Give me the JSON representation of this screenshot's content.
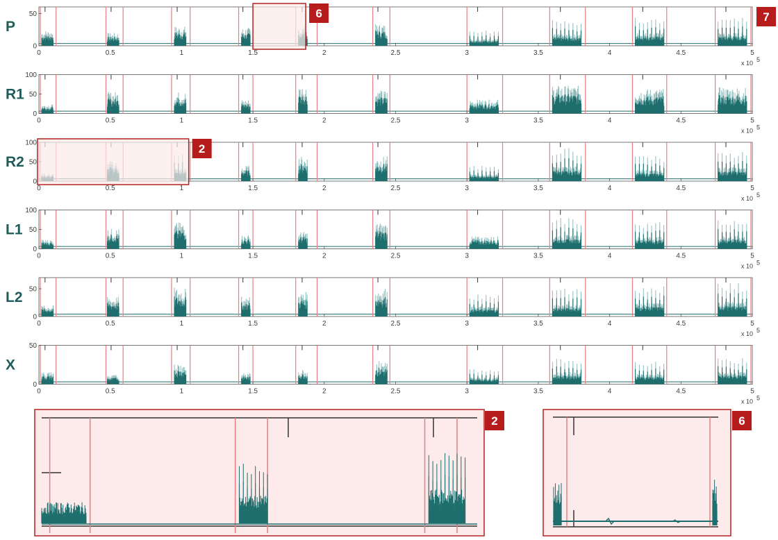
{
  "colors": {
    "signal": "#1e6e6e",
    "signal_light": "#8fbcbc",
    "marker": "#e57f84",
    "highlight_fill": "#fcebea",
    "highlight_border": "#b22222",
    "badge": "#b71c1c",
    "channel_label": "#1f5c5c",
    "axis": "#555555"
  },
  "chart_data": [
    {
      "type": "area",
      "channel": "P",
      "ylim": [
        0,
        60
      ],
      "yticks": [
        "0",
        "50"
      ],
      "xlim": [
        0,
        5
      ],
      "xticks": [
        "0",
        "0.5",
        "1",
        "1.5",
        "2",
        "2.5",
        "3",
        "3.5",
        "4",
        "4.5",
        "5"
      ],
      "xexp": "x 10",
      "bursts": [
        {
          "x": [
            0.02,
            0.1
          ],
          "peak": 30,
          "pattern": "dense"
        },
        {
          "x": [
            0.48,
            0.56
          ],
          "peak": 25,
          "pattern": "dense"
        },
        {
          "x": [
            0.95,
            1.03
          ],
          "peak": 38,
          "pattern": "dense"
        },
        {
          "x": [
            1.42,
            1.48
          ],
          "peak": 35,
          "pattern": "dense"
        },
        {
          "x": [
            1.82,
            1.88
          ],
          "peak": 38,
          "pattern": "dense"
        },
        {
          "x": [
            2.36,
            2.44
          ],
          "peak": 42,
          "pattern": "dense"
        },
        {
          "x": [
            3.02,
            3.22
          ],
          "peak": 25,
          "pattern": "comb"
        },
        {
          "x": [
            3.6,
            3.8
          ],
          "peak": 40,
          "pattern": "comb"
        },
        {
          "x": [
            4.18,
            4.38
          ],
          "peak": 45,
          "pattern": "comb"
        },
        {
          "x": [
            4.76,
            4.96
          ],
          "peak": 45,
          "pattern": "comb"
        }
      ],
      "markers": [
        [
          0.01,
          0.12
        ],
        [
          0.47,
          0.59
        ],
        [
          0.93,
          1.06
        ],
        [
          1.4,
          1.5
        ],
        [
          1.8,
          1.95
        ],
        [
          2.34,
          2.46
        ],
        [
          3.0,
          3.25
        ],
        [
          3.58,
          3.83
        ],
        [
          4.16,
          4.4
        ],
        [
          4.74,
          4.99
        ]
      ]
    },
    {
      "type": "area",
      "channel": "R1",
      "ylim": [
        0,
        100
      ],
      "yticks": [
        "0",
        "50",
        "100"
      ],
      "xlim": [
        0,
        5
      ],
      "xticks": [
        "0",
        "0.5",
        "1",
        "1.5",
        "2",
        "2.5",
        "3",
        "3.5",
        "4",
        "4.5",
        "5"
      ],
      "xexp": "x 10",
      "bursts": [
        {
          "x": [
            0.02,
            0.1
          ],
          "peak": 30,
          "pattern": "dense"
        },
        {
          "x": [
            0.48,
            0.56
          ],
          "peak": 70,
          "pattern": "dense"
        },
        {
          "x": [
            0.95,
            1.03
          ],
          "peak": 70,
          "pattern": "dense"
        },
        {
          "x": [
            1.42,
            1.48
          ],
          "peak": 45,
          "pattern": "dense"
        },
        {
          "x": [
            1.82,
            1.88
          ],
          "peak": 90,
          "pattern": "dense"
        },
        {
          "x": [
            2.36,
            2.44
          ],
          "peak": 75,
          "pattern": "dense"
        },
        {
          "x": [
            3.02,
            3.22
          ],
          "peak": 45,
          "pattern": "dense"
        },
        {
          "x": [
            3.6,
            3.8
          ],
          "peak": 90,
          "pattern": "dense"
        },
        {
          "x": [
            4.18,
            4.38
          ],
          "peak": 80,
          "pattern": "dense"
        },
        {
          "x": [
            4.76,
            4.96
          ],
          "peak": 85,
          "pattern": "dense"
        }
      ],
      "markers": [
        [
          0.01,
          0.12
        ],
        [
          0.47,
          0.59
        ],
        [
          0.93,
          1.06
        ],
        [
          1.4,
          1.5
        ],
        [
          1.8,
          1.95
        ],
        [
          2.34,
          2.46
        ],
        [
          3.0,
          3.25
        ],
        [
          3.58,
          3.83
        ],
        [
          4.16,
          4.4
        ],
        [
          4.74,
          4.99
        ]
      ]
    },
    {
      "type": "area",
      "channel": "R2",
      "ylim": [
        0,
        100
      ],
      "yticks": [
        "0",
        "50",
        "100"
      ],
      "xlim": [
        0,
        5
      ],
      "xticks": [
        "0",
        "0.5",
        "1",
        "1.5",
        "2",
        "2.5",
        "3",
        "3.5",
        "4",
        "4.5",
        "5"
      ],
      "xexp": "x 10",
      "bursts": [
        {
          "x": [
            0.02,
            0.1
          ],
          "peak": 25,
          "pattern": "dense"
        },
        {
          "x": [
            0.48,
            0.56
          ],
          "peak": 65,
          "pattern": "dense"
        },
        {
          "x": [
            0.95,
            1.03
          ],
          "peak": 75,
          "pattern": "comb"
        },
        {
          "x": [
            1.42,
            1.48
          ],
          "peak": 50,
          "pattern": "dense"
        },
        {
          "x": [
            1.82,
            1.88
          ],
          "peak": 80,
          "pattern": "dense"
        },
        {
          "x": [
            2.36,
            2.44
          ],
          "peak": 80,
          "pattern": "dense"
        },
        {
          "x": [
            3.02,
            3.22
          ],
          "peak": 40,
          "pattern": "comb"
        },
        {
          "x": [
            3.6,
            3.8
          ],
          "peak": 85,
          "pattern": "comb"
        },
        {
          "x": [
            4.18,
            4.38
          ],
          "peak": 65,
          "pattern": "comb"
        },
        {
          "x": [
            4.76,
            4.96
          ],
          "peak": 80,
          "pattern": "comb"
        }
      ],
      "markers": [
        [
          0.01,
          0.12
        ],
        [
          0.47,
          0.59
        ],
        [
          0.93,
          1.06
        ],
        [
          1.4,
          1.5
        ],
        [
          1.8,
          1.95
        ],
        [
          2.34,
          2.46
        ],
        [
          3.0,
          3.25
        ],
        [
          3.58,
          3.83
        ],
        [
          4.16,
          4.4
        ],
        [
          4.74,
          4.99
        ]
      ]
    },
    {
      "type": "area",
      "channel": "L1",
      "ylim": [
        0,
        100
      ],
      "yticks": [
        "0",
        "50",
        "100"
      ],
      "xlim": [
        0,
        5
      ],
      "xticks": [
        "0",
        "0.5",
        "1",
        "1.5",
        "2",
        "2.5",
        "3",
        "3.5",
        "4",
        "4.5",
        "5"
      ],
      "xexp": "x 10",
      "bursts": [
        {
          "x": [
            0.02,
            0.1
          ],
          "peak": 30,
          "pattern": "dense"
        },
        {
          "x": [
            0.48,
            0.56
          ],
          "peak": 65,
          "pattern": "dense"
        },
        {
          "x": [
            0.95,
            1.03
          ],
          "peak": 85,
          "pattern": "dense"
        },
        {
          "x": [
            1.42,
            1.48
          ],
          "peak": 45,
          "pattern": "dense"
        },
        {
          "x": [
            1.82,
            1.88
          ],
          "peak": 55,
          "pattern": "dense"
        },
        {
          "x": [
            2.36,
            2.44
          ],
          "peak": 85,
          "pattern": "dense"
        },
        {
          "x": [
            3.02,
            3.22
          ],
          "peak": 40,
          "pattern": "dense"
        },
        {
          "x": [
            3.6,
            3.8
          ],
          "peak": 80,
          "pattern": "comb"
        },
        {
          "x": [
            4.18,
            4.38
          ],
          "peak": 70,
          "pattern": "comb"
        },
        {
          "x": [
            4.76,
            4.96
          ],
          "peak": 75,
          "pattern": "comb"
        }
      ],
      "markers": [
        [
          0.01,
          0.12
        ],
        [
          0.47,
          0.59
        ],
        [
          0.93,
          1.06
        ],
        [
          1.4,
          1.5
        ],
        [
          1.8,
          1.95
        ],
        [
          2.34,
          2.46
        ],
        [
          3.0,
          3.25
        ],
        [
          3.58,
          3.83
        ],
        [
          4.16,
          4.4
        ],
        [
          4.74,
          4.99
        ]
      ]
    },
    {
      "type": "area",
      "channel": "L2",
      "ylim": [
        0,
        70
      ],
      "yticks": [
        "0",
        "50"
      ],
      "xlim": [
        0,
        5
      ],
      "xticks": [
        "0",
        "0.5",
        "1",
        "1.5",
        "2",
        "2.5",
        "3",
        "3.5",
        "4",
        "4.5",
        "5"
      ],
      "xexp": "x 10",
      "bursts": [
        {
          "x": [
            0.02,
            0.1
          ],
          "peak": 25,
          "pattern": "dense"
        },
        {
          "x": [
            0.48,
            0.56
          ],
          "peak": 45,
          "pattern": "dense"
        },
        {
          "x": [
            0.95,
            1.03
          ],
          "peak": 65,
          "pattern": "dense"
        },
        {
          "x": [
            1.42,
            1.48
          ],
          "peak": 45,
          "pattern": "dense"
        },
        {
          "x": [
            1.82,
            1.88
          ],
          "peak": 55,
          "pattern": "dense"
        },
        {
          "x": [
            2.36,
            2.44
          ],
          "peak": 65,
          "pattern": "dense"
        },
        {
          "x": [
            3.02,
            3.22
          ],
          "peak": 40,
          "pattern": "comb"
        },
        {
          "x": [
            3.6,
            3.8
          ],
          "peak": 50,
          "pattern": "comb"
        },
        {
          "x": [
            4.18,
            4.38
          ],
          "peak": 55,
          "pattern": "comb"
        },
        {
          "x": [
            4.76,
            4.96
          ],
          "peak": 60,
          "pattern": "comb"
        }
      ],
      "markers": [
        [
          0.01,
          0.12
        ],
        [
          0.47,
          0.59
        ],
        [
          0.93,
          1.06
        ],
        [
          1.4,
          1.5
        ],
        [
          1.8,
          1.95
        ],
        [
          2.34,
          2.46
        ],
        [
          3.0,
          3.25
        ],
        [
          3.58,
          3.83
        ],
        [
          4.16,
          4.4
        ],
        [
          4.74,
          4.99
        ]
      ]
    },
    {
      "type": "area",
      "channel": "X",
      "ylim": [
        0,
        50
      ],
      "yticks": [
        "0",
        "50"
      ],
      "xlim": [
        0,
        5
      ],
      "xticks": [
        "0",
        "0.5",
        "1",
        "1.5",
        "2",
        "2.5",
        "3",
        "3.5",
        "4",
        "4.5",
        "5"
      ],
      "xexp": "x 10",
      "bursts": [
        {
          "x": [
            0.02,
            0.1
          ],
          "peak": 20,
          "pattern": "dense"
        },
        {
          "x": [
            0.48,
            0.56
          ],
          "peak": 15,
          "pattern": "dense"
        },
        {
          "x": [
            0.95,
            1.03
          ],
          "peak": 35,
          "pattern": "dense"
        },
        {
          "x": [
            1.42,
            1.48
          ],
          "peak": 18,
          "pattern": "dense"
        },
        {
          "x": [
            1.82,
            1.88
          ],
          "peak": 25,
          "pattern": "dense"
        },
        {
          "x": [
            2.36,
            2.44
          ],
          "peak": 38,
          "pattern": "dense"
        },
        {
          "x": [
            3.02,
            3.22
          ],
          "peak": 20,
          "pattern": "comb"
        },
        {
          "x": [
            3.6,
            3.8
          ],
          "peak": 35,
          "pattern": "comb"
        },
        {
          "x": [
            4.18,
            4.38
          ],
          "peak": 30,
          "pattern": "comb"
        },
        {
          "x": [
            4.76,
            4.96
          ],
          "peak": 35,
          "pattern": "comb"
        }
      ],
      "markers": [
        [
          0.01,
          0.12
        ],
        [
          0.47,
          0.59
        ],
        [
          0.93,
          1.06
        ],
        [
          1.4,
          1.5
        ],
        [
          1.8,
          1.95
        ],
        [
          2.34,
          2.46
        ],
        [
          3.0,
          3.25
        ],
        [
          3.58,
          3.83
        ],
        [
          4.16,
          4.4
        ],
        [
          4.74,
          4.99
        ]
      ]
    }
  ],
  "x_exponent": "5",
  "highlights": [
    {
      "label": "6",
      "channel": "P",
      "x": [
        1.5,
        1.87
      ]
    },
    {
      "label": "2",
      "channel": "R2",
      "x": [
        -0.01,
        1.05
      ]
    }
  ],
  "badges": {
    "top_right": "7",
    "zoom_left": "2",
    "zoom_right": "6"
  },
  "zoom_panels": {
    "left": {
      "label": "2",
      "markers": [
        0.02,
        0.12,
        0.48,
        0.56,
        0.95,
        1.03
      ],
      "bursts": [
        {
          "x": [
            0.0,
            0.11
          ],
          "peak": 0.28,
          "pattern": "dense"
        },
        {
          "x": [
            0.49,
            0.56
          ],
          "peak": 0.65,
          "pattern": "comb"
        },
        {
          "x": [
            0.96,
            1.05
          ],
          "peak": 0.8,
          "pattern": "comb"
        }
      ],
      "xlim": [
        0,
        1.08
      ]
    },
    "right": {
      "label": "6"
    }
  }
}
